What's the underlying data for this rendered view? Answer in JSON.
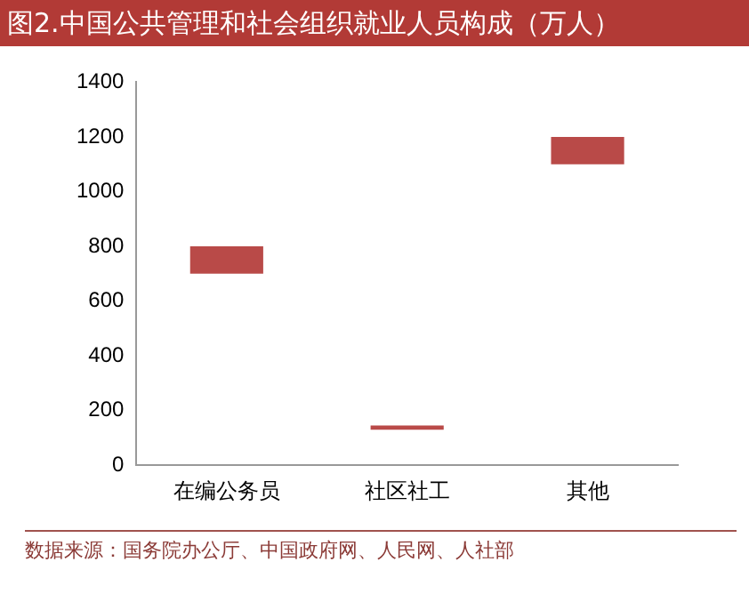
{
  "chart_data": {
    "type": "bar",
    "title": "图2.中国公共管理和社会组织就业人员构成（万人）",
    "categories": [
      "在编公务员",
      "社区社工",
      "其他"
    ],
    "values": [
      100,
      15,
      100
    ],
    "base": [
      700,
      130,
      1100
    ],
    "color": "#b94a48",
    "ylim": [
      0,
      1400
    ],
    "yticks": [
      0,
      200,
      400,
      600,
      800,
      1000,
      1200,
      1400
    ],
    "grid": false,
    "legend": false,
    "annotations": [
      "数据来源：国务院办公厅、中国政府网、人民网、人社部"
    ]
  }
}
